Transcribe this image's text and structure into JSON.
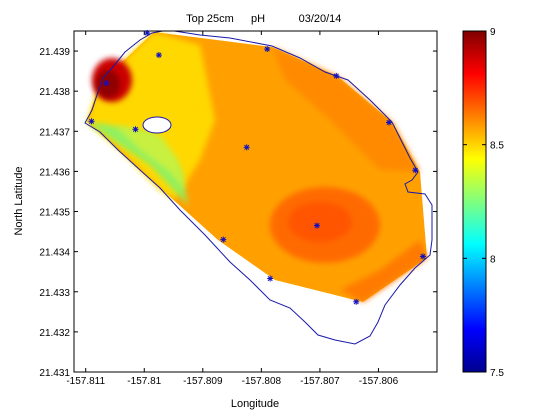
{
  "chart_data": {
    "type": "heatmap",
    "title": "Top 25cm        pH        03/20/14",
    "title_parts": [
      "Top 25cm",
      "pH",
      "03/20/14"
    ],
    "xlabel": "Longitude",
    "ylabel": "North Latitude",
    "xlim": [
      -157.8112,
      -157.805
    ],
    "ylim": [
      21.431,
      21.4395
    ],
    "x_ticks": [
      -157.811,
      -157.81,
      -157.809,
      -157.808,
      -157.807,
      -157.806
    ],
    "x_tick_labels": [
      "-157.811",
      "-157.81",
      "-157.809",
      "-157.808",
      "-157.807",
      "-157.806"
    ],
    "y_ticks": [
      21.431,
      21.432,
      21.433,
      21.434,
      21.435,
      21.436,
      21.437,
      21.438,
      21.439
    ],
    "y_tick_labels": [
      "21.431",
      "21.432",
      "21.433",
      "21.434",
      "21.435",
      "21.436",
      "21.437",
      "21.438",
      "21.439"
    ],
    "colorbar": {
      "min": 7.5,
      "max": 9,
      "ticks": [
        7.5,
        8,
        8.5,
        9
      ],
      "tick_labels": [
        "7.5",
        "8",
        "8.5",
        "9"
      ],
      "colormap": "jet"
    },
    "samples": [
      {
        "x": -157.8109,
        "y": 21.43725,
        "value": 8.35
      },
      {
        "x": -157.81065,
        "y": 21.4382,
        "value": 9.0
      },
      {
        "x": -157.81015,
        "y": 21.43705,
        "value": 8.4
      },
      {
        "x": -157.80995,
        "y": 21.43945,
        "value": 8.55
      },
      {
        "x": -157.80975,
        "y": 21.4389,
        "value": 8.7
      },
      {
        "x": -157.80865,
        "y": 21.4343,
        "value": 8.6
      },
      {
        "x": -157.80825,
        "y": 21.4366,
        "value": 8.62
      },
      {
        "x": -157.8079,
        "y": 21.43905,
        "value": 8.62
      },
      {
        "x": -157.80785,
        "y": 21.43333,
        "value": 8.66
      },
      {
        "x": -157.80705,
        "y": 21.43465,
        "value": 8.78
      },
      {
        "x": -157.80672,
        "y": 21.43838,
        "value": 8.66
      },
      {
        "x": -157.80638,
        "y": 21.43275,
        "value": 8.72
      },
      {
        "x": -157.80582,
        "y": 21.43722,
        "value": 8.62
      },
      {
        "x": -157.80537,
        "y": 21.43603,
        "value": 8.56
      },
      {
        "x": -157.80524,
        "y": 21.43388,
        "value": 8.6
      }
    ],
    "grid": false,
    "legend": "colorbar-right"
  }
}
